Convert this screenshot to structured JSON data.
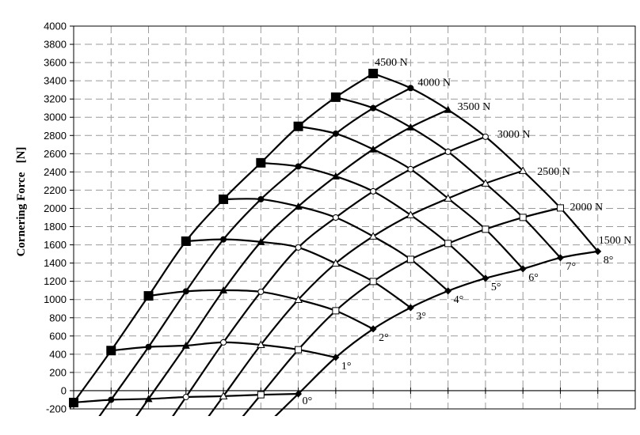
{
  "chart_data": {
    "type": "line",
    "title": "",
    "xlabel": "",
    "ylabel": "Cornering Force   [N]",
    "ylim": [
      -200,
      4000
    ],
    "yticks": [
      -200,
      0,
      200,
      400,
      600,
      800,
      1000,
      1200,
      1400,
      1600,
      1800,
      2000,
      2200,
      2400,
      2600,
      2800,
      3000,
      3200,
      3400,
      3600,
      3800,
      4000
    ],
    "xlim": [
      0,
      15
    ],
    "xticks_labeled": false,
    "grid": true,
    "legend": "none",
    "angles": [
      "0°",
      "1°",
      "2°",
      "3°",
      "4°",
      "5°",
      "6°",
      "7°",
      "8°"
    ],
    "series": [
      {
        "name": "4500 N",
        "marker": "filled-square-large",
        "x": [
          0,
          1,
          2,
          3,
          4,
          5,
          6,
          7,
          8
        ],
        "values": [
          -130,
          440,
          1040,
          1640,
          2100,
          2500,
          2900,
          3220,
          3480
        ]
      },
      {
        "name": "4000 N",
        "marker": "filled-circle",
        "x": [
          1,
          2,
          3,
          4,
          5,
          6,
          7,
          8,
          9
        ],
        "values": [
          -100,
          480,
          1090,
          1660,
          2100,
          2460,
          2820,
          3100,
          3320
        ]
      },
      {
        "name": "3500 N",
        "marker": "filled-triangle",
        "x": [
          2,
          3,
          4,
          5,
          6,
          7,
          8,
          9,
          10
        ],
        "values": [
          -90,
          495,
          1102,
          1632,
          2022,
          2352,
          2648,
          2890,
          3082
        ]
      },
      {
        "name": "3000 N",
        "marker": "open-circle",
        "x": [
          3,
          4,
          5,
          6,
          7,
          8,
          9,
          10,
          11
        ],
        "values": [
          -70,
          530,
          1085,
          1571,
          1900,
          2187,
          2430,
          2621,
          2786
        ]
      },
      {
        "name": "2500 N",
        "marker": "open-triangle",
        "x": [
          4,
          5,
          6,
          7,
          8,
          9,
          10,
          11,
          12
        ],
        "values": [
          -60,
          503,
          998,
          1397,
          1693,
          1927,
          2109,
          2274,
          2413
        ]
      },
      {
        "name": "2000 N",
        "marker": "open-square",
        "x": [
          5,
          6,
          7,
          8,
          9,
          10,
          11,
          12,
          13
        ],
        "values": [
          -45,
          450,
          877,
          1198,
          1441,
          1615,
          1771,
          1901,
          2005
        ]
      },
      {
        "name": "1500 N",
        "marker": "filled-diamond",
        "x": [
          6,
          7,
          8,
          9,
          10,
          11,
          12,
          13,
          14
        ],
        "values": [
          -35,
          365,
          677,
          911,
          1094,
          1233,
          1337,
          1458,
          1528
        ]
      }
    ],
    "colors": {
      "lines": "#000000",
      "grid": "#9a9a9a",
      "background": "#ffffff"
    }
  }
}
